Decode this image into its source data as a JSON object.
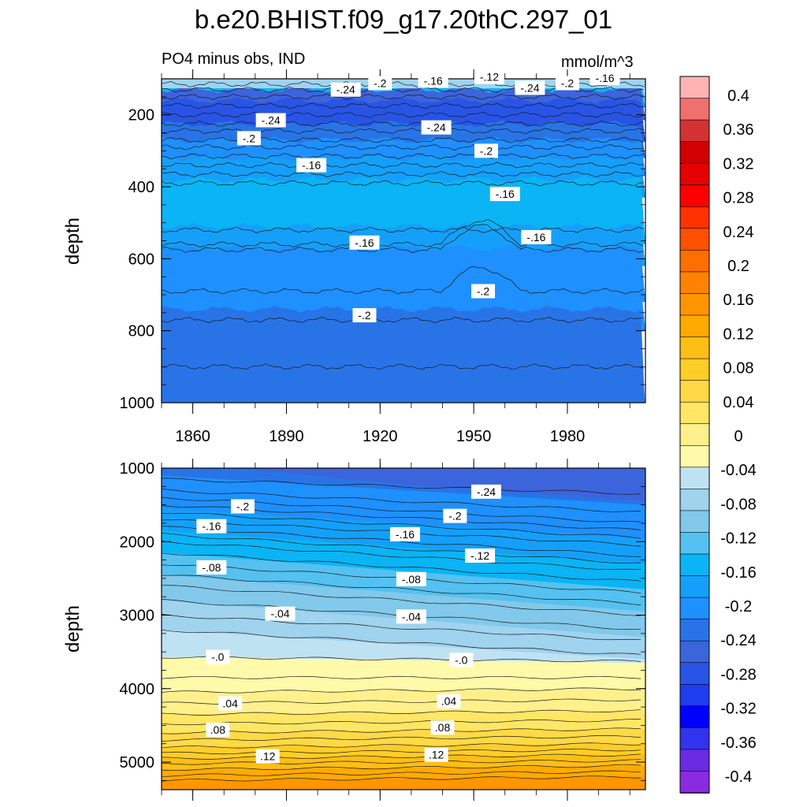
{
  "title": "b.e20.BHIST.f09_g17.20thC.297_01",
  "left_string": "PO4 minus obs, IND",
  "right_string": "mmol/m^3",
  "colors": {
    "levels": [
      "#8a2be2",
      "#6a2be2",
      "#3232f0",
      "#0000ff",
      "#1e3cf0",
      "#2855e6",
      "#3c64dc",
      "#2874e6",
      "#1e90ff",
      "#14a0fa",
      "#0ab4f5",
      "#55c1f0",
      "#82c8ea",
      "#9fd3ee",
      "#bfe2f3",
      "#fffaaa",
      "#fff08c",
      "#ffe664",
      "#ffd946",
      "#ffcd28",
      "#ffbe14",
      "#ffaa00",
      "#ff9600",
      "#ff8200",
      "#ff6e00",
      "#ff5000",
      "#ff3200",
      "#ff0000",
      "#e60000",
      "#d20000",
      "#d23232",
      "#f07070",
      "#ffb4b4"
    ]
  },
  "chart_data": [
    {
      "type": "contour",
      "ylabel": "depth",
      "x_ticks": [
        "1860",
        "1890",
        "1920",
        "1950",
        "1980"
      ],
      "y_ticks": [
        "200",
        "400",
        "600",
        "800",
        "1000"
      ],
      "ylim": [
        1000,
        100
      ],
      "xlim": [
        1850,
        2005
      ],
      "contour_labels": [
        {
          "text": "-.24",
          "x": 1909,
          "y": 130
        },
        {
          "text": "-.2",
          "x": 1920,
          "y": 112
        },
        {
          "text": "-.16",
          "x": 1937,
          "y": 105
        },
        {
          "text": "-.12",
          "x": 1955,
          "y": 95
        },
        {
          "text": "-.24",
          "x": 1968,
          "y": 125
        },
        {
          "text": "-.2",
          "x": 1980,
          "y": 112
        },
        {
          "text": "-.16",
          "x": 1992,
          "y": 98
        },
        {
          "text": "-.24",
          "x": 1885,
          "y": 215
        },
        {
          "text": "-.2",
          "x": 1878,
          "y": 265
        },
        {
          "text": "-.24",
          "x": 1938,
          "y": 235
        },
        {
          "text": "-.2",
          "x": 1954,
          "y": 300
        },
        {
          "text": "-.16",
          "x": 1898,
          "y": 340
        },
        {
          "text": "-.16",
          "x": 1960,
          "y": 420
        },
        {
          "text": "-.16",
          "x": 1970,
          "y": 540
        },
        {
          "text": "-.16",
          "x": 1915,
          "y": 555
        },
        {
          "text": "-.2",
          "x": 1953,
          "y": 690
        },
        {
          "text": "-.2",
          "x": 1915,
          "y": 757
        }
      ]
    },
    {
      "type": "contour",
      "ylabel": "depth",
      "y_ticks": [
        "1000",
        "2000",
        "3000",
        "4000",
        "5000"
      ],
      "ylim": [
        5375,
        1000
      ],
      "xlim": [
        1850,
        2005
      ],
      "contour_labels": [
        {
          "text": "-.24",
          "x": 1954,
          "y": 1320
        },
        {
          "text": "-.2",
          "x": 1876,
          "y": 1520
        },
        {
          "text": "-.2",
          "x": 1944,
          "y": 1650
        },
        {
          "text": "-.16",
          "x": 1866,
          "y": 1790
        },
        {
          "text": "-.16",
          "x": 1928,
          "y": 1900
        },
        {
          "text": "-.12",
          "x": 1952,
          "y": 2190
        },
        {
          "text": "-.08",
          "x": 1866,
          "y": 2350
        },
        {
          "text": "-.08",
          "x": 1930,
          "y": 2510
        },
        {
          "text": "-.04",
          "x": 1888,
          "y": 2980
        },
        {
          "text": "-.04",
          "x": 1930,
          "y": 3020
        },
        {
          "text": "-.0",
          "x": 1868,
          "y": 3570
        },
        {
          "text": "-.0",
          "x": 1946,
          "y": 3610
        },
        {
          "text": ".04",
          "x": 1872,
          "y": 4200
        },
        {
          "text": ".04",
          "x": 1942,
          "y": 4170
        },
        {
          "text": ".08",
          "x": 1868,
          "y": 4560
        },
        {
          "text": ".08",
          "x": 1940,
          "y": 4530
        },
        {
          "text": ".12",
          "x": 1884,
          "y": 4920
        },
        {
          "text": ".12",
          "x": 1938,
          "y": 4900
        }
      ]
    }
  ],
  "colorbar": {
    "labels": [
      "0.4",
      "0.36",
      "0.32",
      "0.28",
      "0.24",
      "0.2",
      "0.16",
      "0.12",
      "0.08",
      "0.04",
      "0",
      "-0.04",
      "-0.08",
      "-0.12",
      "-0.16",
      "-0.2",
      "-0.24",
      "-0.28",
      "-0.32",
      "-0.36",
      "-0.4"
    ]
  }
}
